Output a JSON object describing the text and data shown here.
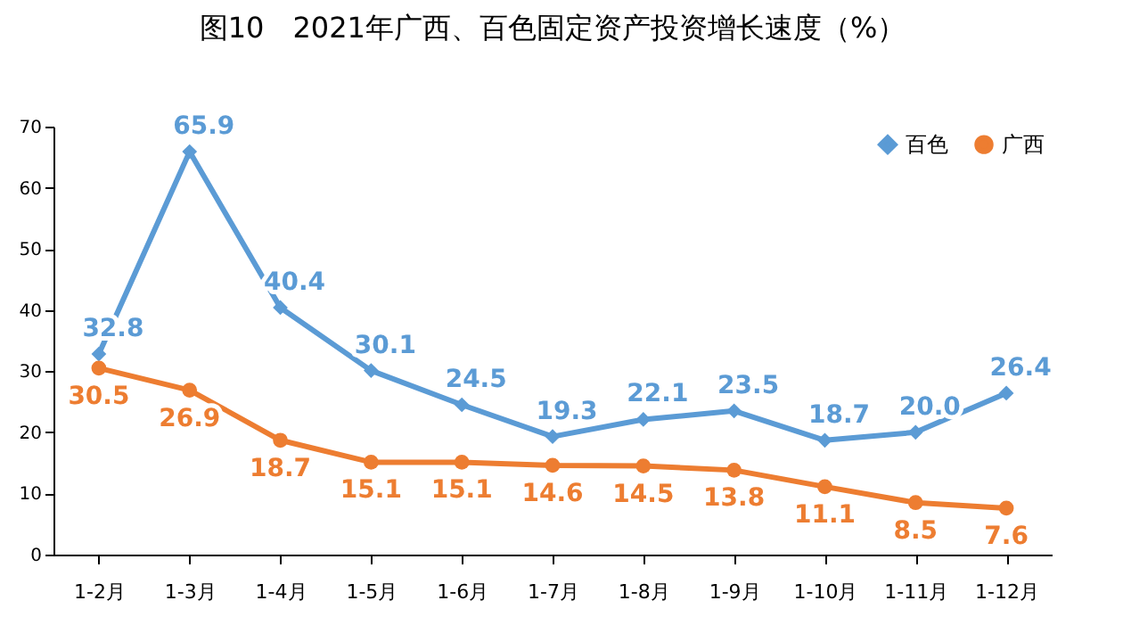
{
  "chart_data": {
    "type": "line",
    "title": "图10　2021年广西、百色固定资产投资增长速度（%）",
    "categories": [
      "1-2月",
      "1-3月",
      "1-4月",
      "1-5月",
      "1-6月",
      "1-7月",
      "1-8月",
      "1-9月",
      "1-10月",
      "1-11月",
      "1-12月"
    ],
    "series": [
      {
        "name": "百色",
        "color": "#5b9bd5",
        "marker": "diamond",
        "values": [
          32.8,
          65.9,
          40.4,
          30.1,
          24.5,
          19.3,
          22.1,
          23.5,
          18.7,
          20.0,
          26.4
        ],
        "value_labels": [
          "32.8",
          "65.9",
          "40.4",
          "30.1",
          "24.5",
          "19.3",
          "22.1",
          "23.5",
          "18.7",
          "20.0",
          "26.4"
        ]
      },
      {
        "name": "广西",
        "color": "#ed7d31",
        "marker": "circle",
        "values": [
          30.5,
          26.9,
          18.7,
          15.1,
          15.1,
          14.6,
          14.5,
          13.8,
          11.1,
          8.5,
          7.6
        ],
        "value_labels": [
          "30.5",
          "26.9",
          "18.7",
          "15.1",
          "15.1",
          "14.6",
          "14.5",
          "13.8",
          "11.1",
          "8.5",
          "7.6"
        ]
      }
    ],
    "ylim": [
      0,
      70
    ],
    "yticks": [
      0,
      10,
      20,
      30,
      40,
      50,
      60,
      70
    ],
    "grid": false,
    "legend": "top right"
  }
}
